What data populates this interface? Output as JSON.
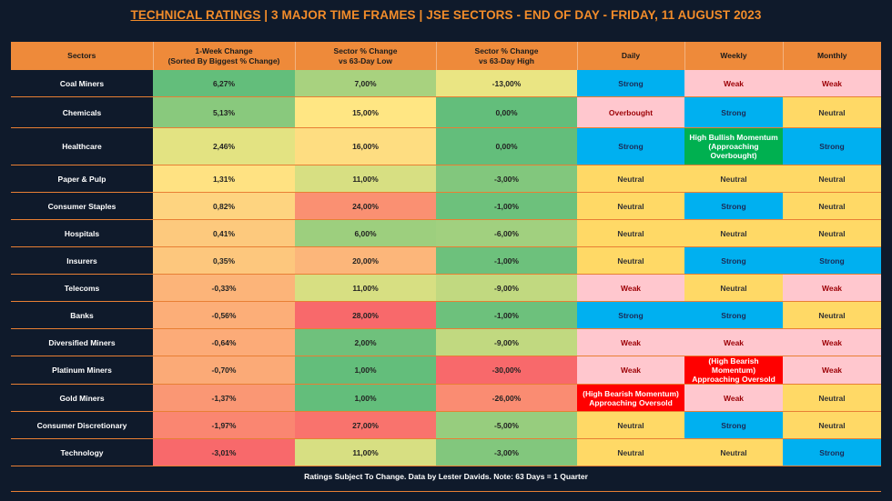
{
  "title": {
    "lead": "TECHNICAL RATINGS",
    "rest": " |  3 MAJOR TIME FRAMES | JSE SECTORS - END OF DAY - FRIDAY, 11 AUGUST 2023"
  },
  "footer": "Ratings Subject To Change. Data by Lester Davids. Note: 63 Days = 1 Quarter",
  "chart_data": {
    "type": "table",
    "columns": [
      {
        "line1": "Sectors",
        "line2": ""
      },
      {
        "line1": "1-Week Change",
        "line2": "(Sorted By Biggest % Change)"
      },
      {
        "line1": "Sector % Change",
        "line2": "vs 63-Day Low"
      },
      {
        "line1": "Sector % Change",
        "line2": "vs 63-Day High"
      },
      {
        "line1": "Daily",
        "line2": ""
      },
      {
        "line1": "Weekly",
        "line2": ""
      },
      {
        "line1": "Monthly",
        "line2": ""
      }
    ],
    "rows": [
      {
        "sector": "Coal Miners",
        "week": "6,27%",
        "low": "7,00%",
        "high": "-13,00%",
        "daily": "Strong",
        "weekly": "Weak",
        "monthly": "Weak"
      },
      {
        "sector": "Chemicals",
        "week": "5,13%",
        "low": "15,00%",
        "high": "0,00%",
        "daily": "Overbought",
        "weekly": "Strong",
        "monthly": "Neutral"
      },
      {
        "sector": "Healthcare",
        "week": "2,46%",
        "low": "16,00%",
        "high": "0,00%",
        "daily": "Strong",
        "weekly": "High Bullish Momentum\n(Approaching Overbought)",
        "monthly": "Strong"
      },
      {
        "sector": "Paper & Pulp",
        "week": "1,31%",
        "low": "11,00%",
        "high": "-3,00%",
        "daily": "Neutral",
        "weekly": "Neutral",
        "monthly": "Neutral"
      },
      {
        "sector": "Consumer Staples",
        "week": "0,82%",
        "low": "24,00%",
        "high": "-1,00%",
        "daily": "Neutral",
        "weekly": "Strong",
        "monthly": "Neutral"
      },
      {
        "sector": "Hospitals",
        "week": "0,41%",
        "low": "6,00%",
        "high": "-6,00%",
        "daily": "Neutral",
        "weekly": "Neutral",
        "monthly": "Neutral"
      },
      {
        "sector": "Insurers",
        "week": "0,35%",
        "low": "20,00%",
        "high": "-1,00%",
        "daily": "Neutral",
        "weekly": "Strong",
        "monthly": "Strong"
      },
      {
        "sector": "Telecoms",
        "week": "-0,33%",
        "low": "11,00%",
        "high": "-9,00%",
        "daily": "Weak",
        "weekly": "Neutral",
        "monthly": "Weak"
      },
      {
        "sector": "Banks",
        "week": "-0,56%",
        "low": "28,00%",
        "high": "-1,00%",
        "daily": "Strong",
        "weekly": "Strong",
        "monthly": "Neutral"
      },
      {
        "sector": "Diversified Miners",
        "week": "-0,64%",
        "low": "2,00%",
        "high": "-9,00%",
        "daily": "Weak",
        "weekly": "Weak",
        "monthly": "Weak"
      },
      {
        "sector": "Platinum Miners",
        "week": "-0,70%",
        "low": "1,00%",
        "high": "-30,00%",
        "daily": "Weak",
        "weekly": "(High Bearish Momentum)\nApproaching Oversold",
        "monthly": "Weak"
      },
      {
        "sector": "Gold Miners",
        "week": "-1,37%",
        "low": "1,00%",
        "high": "-26,00%",
        "daily": "(High Bearish Momentum)\nApproaching Oversold",
        "weekly": "Weak",
        "monthly": "Neutral"
      },
      {
        "sector": "Consumer Discretionary",
        "week": "-1,97%",
        "low": "27,00%",
        "high": "-5,00%",
        "daily": "Neutral",
        "weekly": "Strong",
        "monthly": "Neutral"
      },
      {
        "sector": "Technology",
        "week": "-3,01%",
        "low": "11,00%",
        "high": "-3,00%",
        "daily": "Neutral",
        "weekly": "Neutral",
        "monthly": "Strong"
      }
    ],
    "colors": {
      "header": "#ee8a3a",
      "strong": "#00b0f0",
      "weak": "#ffc7ce",
      "neutral": "#ffd966",
      "bullish": "#00b050",
      "bearish": "#ff0000"
    }
  }
}
